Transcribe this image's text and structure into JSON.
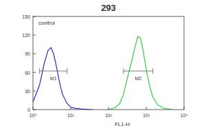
{
  "chart_data": {
    "type": "line",
    "title": "293",
    "xlabel": "FL1-H",
    "log": "x",
    "xlim": [
      1,
      10000
    ],
    "xticks": [
      {
        "value": 1,
        "label": "10⁰"
      },
      {
        "value": 10,
        "label": "10¹"
      },
      {
        "value": 100,
        "label": "10²"
      },
      {
        "value": 1000,
        "label": "10³"
      },
      {
        "value": 10000,
        "label": "10⁴"
      }
    ],
    "ylim": [
      0,
      150
    ],
    "yticks": [
      0,
      30,
      60,
      90,
      120,
      150
    ],
    "x": [
      1,
      1.5,
      2,
      2.5,
      3,
      3.5,
      4,
      5,
      6,
      8,
      10,
      13,
      20,
      40,
      100,
      150,
      200,
      250,
      300,
      400,
      500,
      600,
      700,
      800,
      1000,
      1200,
      1500,
      2000,
      3000,
      5000,
      10000
    ],
    "series": [
      {
        "name": "control",
        "color": "#2b2bb5",
        "values": [
          12,
          40,
          75,
          95,
          100,
          90,
          75,
          45,
          25,
          10,
          4,
          2,
          1,
          0,
          null,
          null,
          null,
          null,
          null,
          null,
          null,
          null,
          null,
          null,
          null,
          null,
          null,
          null,
          null,
          null,
          null
        ]
      },
      {
        "color": "#33cc44",
        "values": [
          null,
          null,
          null,
          null,
          null,
          null,
          null,
          null,
          null,
          null,
          null,
          null,
          null,
          null,
          0,
          3,
          10,
          25,
          45,
          75,
          100,
          118,
          115,
          100,
          65,
          40,
          20,
          8,
          2,
          0,
          null
        ]
      }
    ],
    "annotations": [
      {
        "label": "M1",
        "x": [
          1.5,
          8
        ],
        "y": 62
      },
      {
        "label": "M2",
        "x": [
          250,
          1500
        ],
        "y": 62
      }
    ]
  }
}
